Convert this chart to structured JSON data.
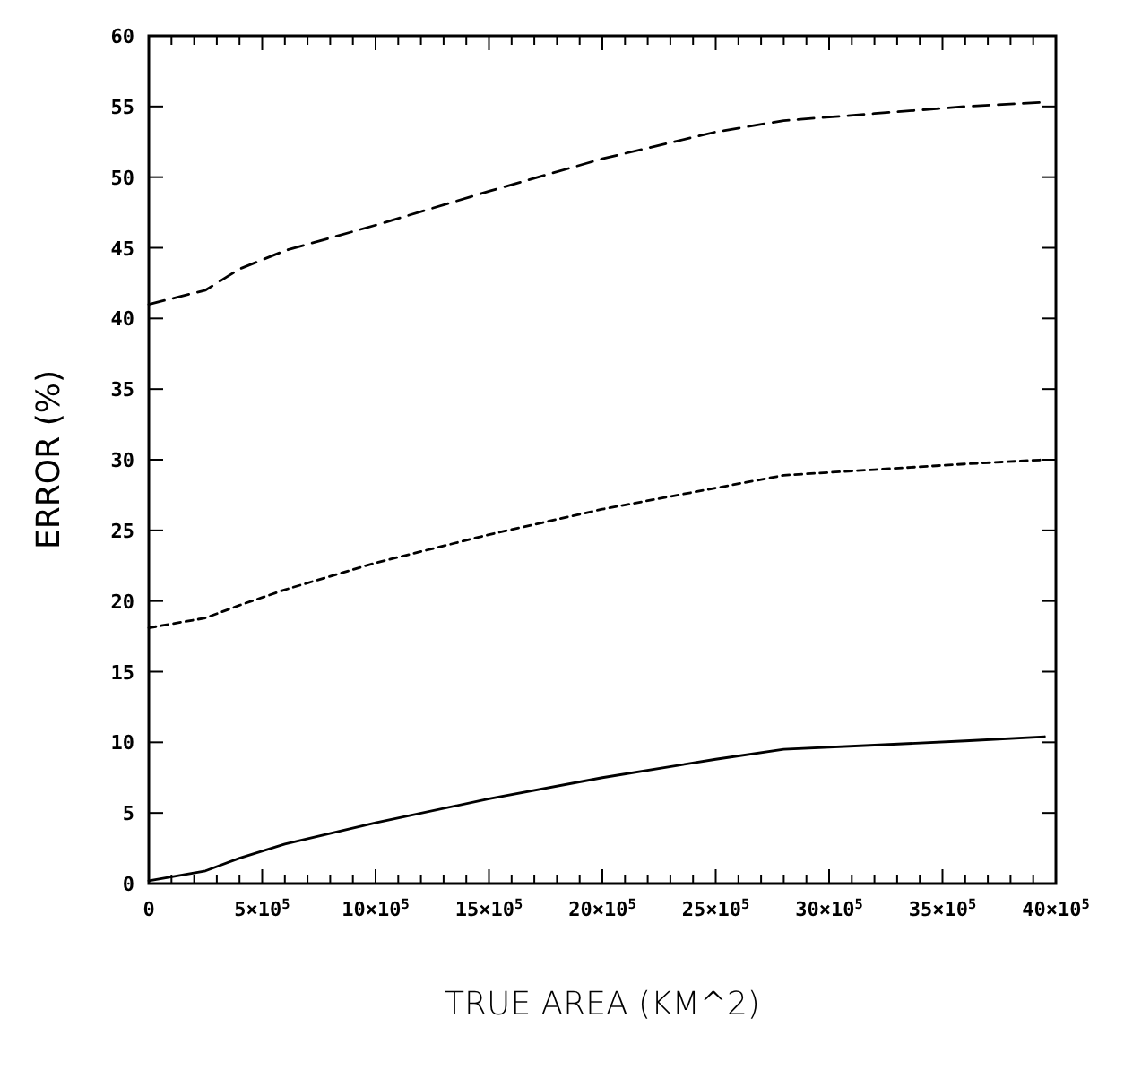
{
  "chart_data": {
    "type": "line",
    "xlabel": "TRUE AREA (KM^2)",
    "ylabel": "ERROR (%)",
    "xlim": [
      0,
      4000000
    ],
    "ylim": [
      0,
      60
    ],
    "xticks": [
      0,
      {
        "value": 100000,
        "label": null
      },
      {
        "value": 200000,
        "label": null
      },
      {
        "value": 300000,
        "label": null
      },
      {
        "value": 400000,
        "label": null
      },
      {
        "value": 500000,
        "label": "5×10$^{5}$"
      },
      {
        "value": 600000,
        "label": null
      },
      {
        "value": 700000,
        "label": null
      },
      {
        "value": 800000,
        "label": null
      },
      {
        "value": 900000,
        "label": null
      },
      {
        "value": 1000000,
        "label": "10×10$^{5}$"
      },
      {
        "value": 1100000,
        "label": null
      },
      {
        "value": 1200000,
        "label": null
      },
      {
        "value": 1300000,
        "label": null
      },
      {
        "value": 1400000,
        "label": null
      },
      {
        "value": 1500000,
        "label": "15×10$^{5}$"
      },
      {
        "value": 1600000,
        "label": null
      },
      {
        "value": 1700000,
        "label": null
      },
      {
        "value": 1800000,
        "label": null
      },
      {
        "value": 1900000,
        "label": null
      },
      {
        "value": 2000000,
        "label": "20×10$^{5}$"
      },
      {
        "value": 2100000,
        "label": null
      },
      {
        "value": 2200000,
        "label": null
      },
      {
        "value": 2300000,
        "label": null
      },
      {
        "value": 2400000,
        "label": null
      },
      {
        "value": 2500000,
        "label": "25×10$^{5}$"
      },
      {
        "value": 2600000,
        "label": null
      },
      {
        "value": 2700000,
        "label": null
      },
      {
        "value": 2800000,
        "label": null
      },
      {
        "value": 2900000,
        "label": null
      },
      {
        "value": 3000000,
        "label": "30×10$^{5}$"
      },
      {
        "value": 3100000,
        "label": null
      },
      {
        "value": 3200000,
        "label": null
      },
      {
        "value": 3300000,
        "label": null
      },
      {
        "value": 3400000,
        "label": null
      },
      {
        "value": 3500000,
        "label": "35×10$^{5}$"
      },
      {
        "value": 3600000,
        "label": null
      },
      {
        "value": 3700000,
        "label": null
      },
      {
        "value": 3800000,
        "label": null
      },
      {
        "value": 3900000,
        "label": null
      },
      {
        "value": 4000000,
        "label": "40×10$^{5}$"
      }
    ],
    "yticks": [
      0,
      5,
      10,
      15,
      20,
      25,
      30,
      35,
      40,
      45,
      50,
      55,
      60
    ],
    "x": [
      0,
      250000,
      400000,
      600000,
      1000000,
      1500000,
      2000000,
      2500000,
      2800000,
      3200000,
      3600000,
      3950000
    ],
    "series": [
      {
        "color": "#000000",
        "line_style": "dashed",
        "values": [
          41,
          42,
          43.5,
          44.8,
          46.6,
          49,
          51.3,
          53.2,
          54,
          54.5,
          55,
          55.3
        ]
      },
      {
        "color": "#000000",
        "line_style": "dotted",
        "values": [
          18.1,
          18.8,
          19.7,
          20.8,
          22.7,
          24.7,
          26.5,
          28,
          28.9,
          29.3,
          29.7,
          30
        ]
      },
      {
        "color": "#000000",
        "line_style": "solid",
        "values": [
          0.2,
          0.9,
          1.8,
          2.8,
          4.3,
          6,
          7.5,
          8.8,
          9.5,
          9.8,
          10.1,
          10.4
        ]
      }
    ],
    "grid": false,
    "marker": "none"
  }
}
